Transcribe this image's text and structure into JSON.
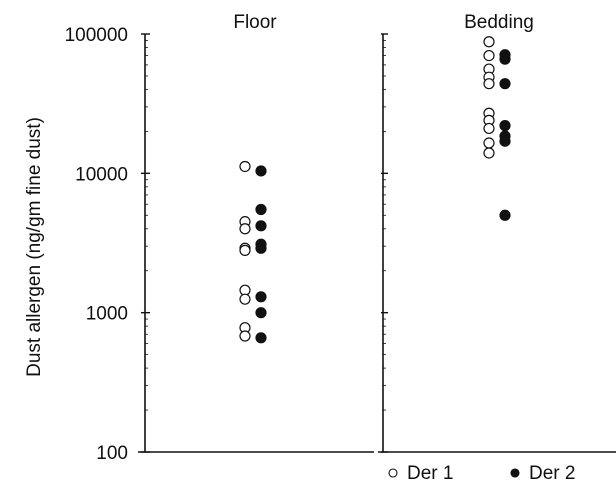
{
  "chart_data": {
    "type": "scatter",
    "yscale": "log",
    "ylim": [
      100,
      100000
    ],
    "ylabel": "Dust allergen (ng/gm fine dust)",
    "yticks": [
      "100",
      "1000",
      "10000",
      "100000"
    ],
    "grid": false,
    "legend_position": "bottom-right",
    "panels": [
      {
        "title": "Floor",
        "series": [
          {
            "name": "Der 1",
            "marker": "open-circle",
            "values": [
              11200,
              4500,
              4000,
              2900,
              2800,
              1450,
              1250,
              780,
              680
            ]
          },
          {
            "name": "Der 2",
            "marker": "filled-circle",
            "values": [
              10400,
              5500,
              4200,
              3100,
              2900,
              1300,
              1000,
              660
            ]
          }
        ]
      },
      {
        "title": "Bedding",
        "series": [
          {
            "name": "Der 1",
            "marker": "open-circle",
            "values": [
              88000,
              70000,
              56000,
              49000,
              44000,
              27000,
              24000,
              21000,
              16500,
              14000
            ]
          },
          {
            "name": "Der 2",
            "marker": "filled-circle",
            "values": [
              71000,
              66000,
              44000,
              22000,
              18500,
              17000,
              5000
            ]
          }
        ]
      }
    ],
    "legend": [
      {
        "label": "Der 1",
        "marker": "open-circle"
      },
      {
        "label": "Der 2",
        "marker": "filled-circle"
      }
    ]
  },
  "colors": {
    "ink": "#111111",
    "background": "#ffffff"
  }
}
